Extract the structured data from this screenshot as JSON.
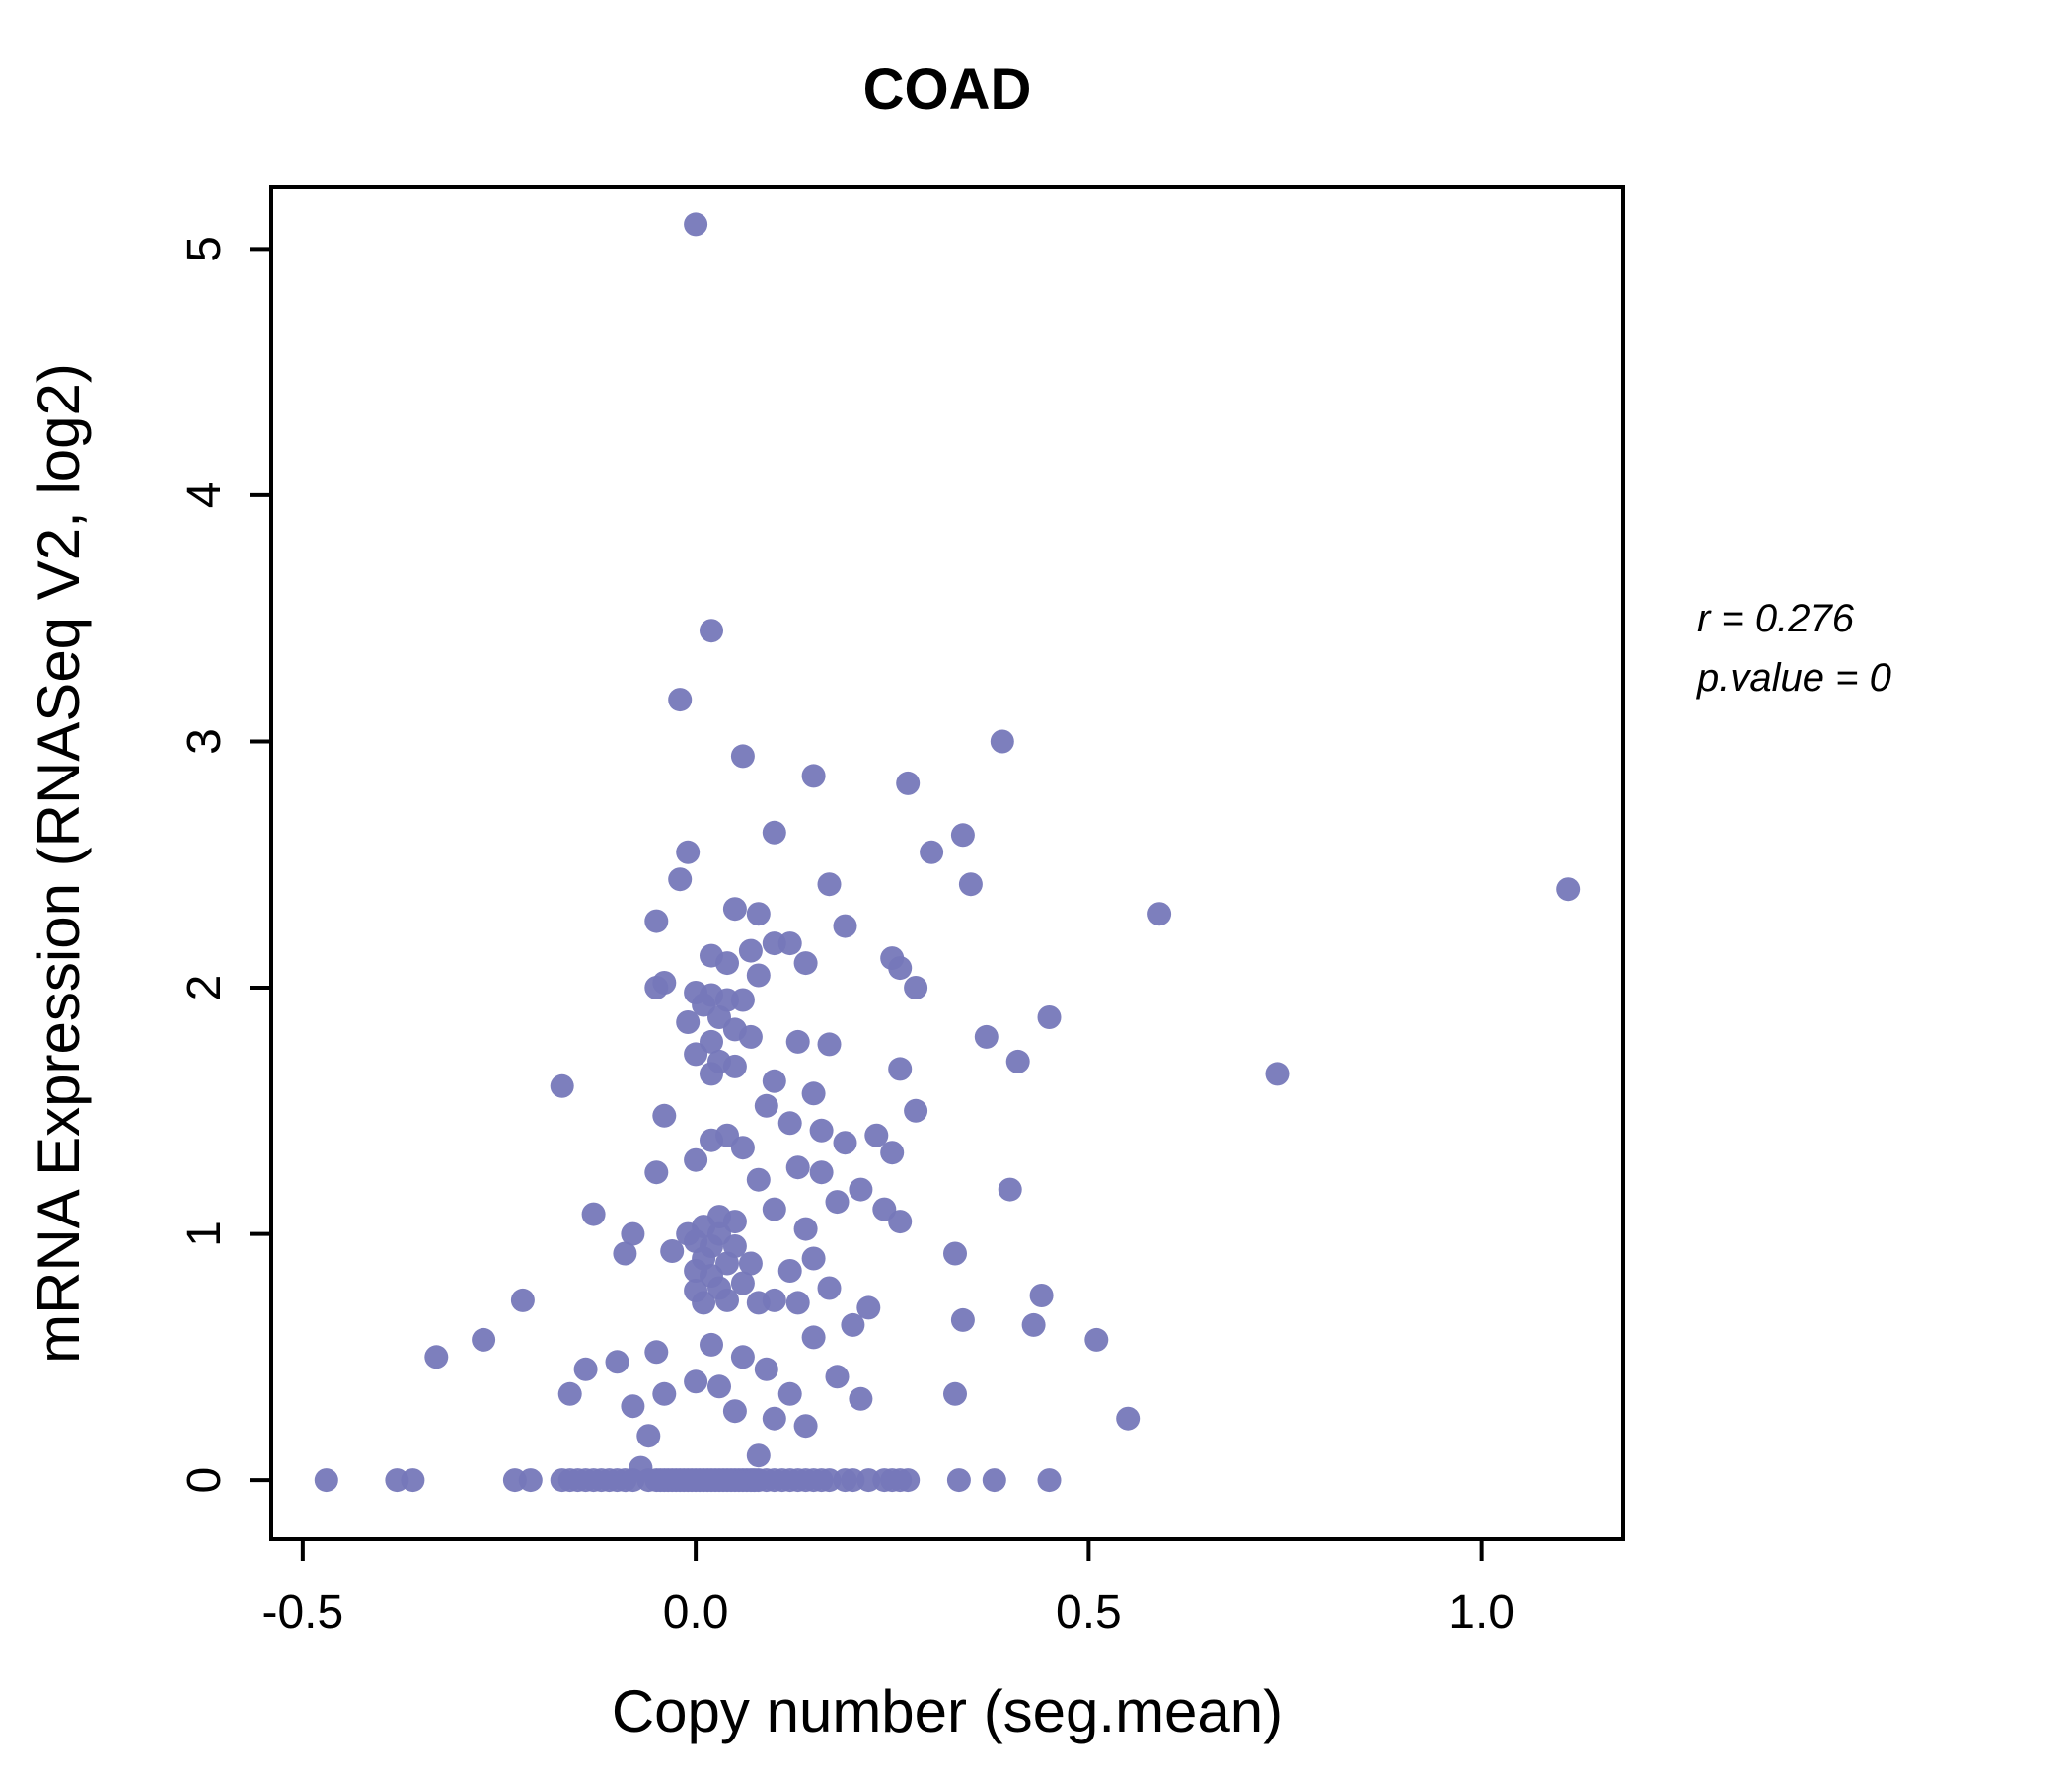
{
  "title": "COAD",
  "annotation": {
    "r_line": "r = 0.276",
    "p_line": "p.value = 0"
  },
  "colors": {
    "points": "#7678b9",
    "title": "#6c6cb4",
    "axis": "#000000"
  },
  "chart_data": {
    "type": "scatter",
    "title": "COAD",
    "xlabel": "Copy number (seg.mean)",
    "ylabel": "mRNA Expression (RNASeq V2, log2)",
    "xlim": [
      -0.54,
      1.18
    ],
    "ylim": [
      -0.24,
      5.25
    ],
    "xticks": [
      -0.5,
      0.0,
      0.5,
      1.0
    ],
    "yticks": [
      0,
      1,
      2,
      3,
      4,
      5
    ],
    "grid": false,
    "legend": "none",
    "annotations": [
      "r = 0.276",
      "p.value = 0"
    ],
    "points": [
      [
        0.0,
        5.1
      ],
      [
        0.02,
        3.45
      ],
      [
        -0.02,
        3.17
      ],
      [
        0.39,
        3.0
      ],
      [
        0.06,
        2.94
      ],
      [
        0.15,
        2.86
      ],
      [
        0.27,
        2.83
      ],
      [
        0.1,
        2.63
      ],
      [
        0.34,
        2.62
      ],
      [
        0.3,
        2.55
      ],
      [
        -0.01,
        2.55
      ],
      [
        0.17,
        2.42
      ],
      [
        0.35,
        2.42
      ],
      [
        -0.02,
        2.44
      ],
      [
        1.11,
        2.4
      ],
      [
        0.59,
        2.3
      ],
      [
        0.05,
        2.32
      ],
      [
        0.08,
        2.3
      ],
      [
        -0.05,
        2.27
      ],
      [
        0.19,
        2.25
      ],
      [
        0.25,
        2.12
      ],
      [
        0.26,
        2.08
      ],
      [
        0.1,
        2.18
      ],
      [
        0.12,
        2.18
      ],
      [
        0.07,
        2.15
      ],
      [
        0.02,
        2.13
      ],
      [
        0.04,
        2.1
      ],
      [
        0.14,
        2.1
      ],
      [
        0.08,
        2.05
      ],
      [
        -0.04,
        2.02
      ],
      [
        -0.05,
        2.0
      ],
      [
        0.0,
        1.98
      ],
      [
        0.02,
        1.97
      ],
      [
        0.04,
        1.95
      ],
      [
        0.06,
        1.95
      ],
      [
        0.01,
        1.93
      ],
      [
        0.28,
        2.0
      ],
      [
        0.45,
        1.88
      ],
      [
        0.37,
        1.8
      ],
      [
        0.03,
        1.88
      ],
      [
        -0.01,
        1.86
      ],
      [
        0.05,
        1.83
      ],
      [
        0.07,
        1.8
      ],
      [
        0.02,
        1.78
      ],
      [
        0.13,
        1.78
      ],
      [
        0.17,
        1.77
      ],
      [
        0.0,
        1.73
      ],
      [
        0.03,
        1.7
      ],
      [
        0.05,
        1.68
      ],
      [
        0.02,
        1.65
      ],
      [
        0.26,
        1.67
      ],
      [
        0.41,
        1.7
      ],
      [
        0.74,
        1.65
      ],
      [
        0.1,
        1.62
      ],
      [
        -0.17,
        1.6
      ],
      [
        0.15,
        1.57
      ],
      [
        0.09,
        1.52
      ],
      [
        -0.04,
        1.48
      ],
      [
        0.28,
        1.5
      ],
      [
        0.12,
        1.45
      ],
      [
        0.16,
        1.42
      ],
      [
        0.04,
        1.4
      ],
      [
        0.02,
        1.38
      ],
      [
        0.06,
        1.35
      ],
      [
        0.19,
        1.37
      ],
      [
        0.23,
        1.4
      ],
      [
        0.25,
        1.33
      ],
      [
        0.0,
        1.3
      ],
      [
        0.13,
        1.27
      ],
      [
        0.16,
        1.25
      ],
      [
        -0.05,
        1.25
      ],
      [
        0.08,
        1.22
      ],
      [
        0.4,
        1.18
      ],
      [
        0.21,
        1.18
      ],
      [
        0.18,
        1.13
      ],
      [
        0.24,
        1.1
      ],
      [
        0.1,
        1.1
      ],
      [
        0.03,
        1.07
      ],
      [
        -0.13,
        1.08
      ],
      [
        0.05,
        1.05
      ],
      [
        0.01,
        1.03
      ],
      [
        -0.01,
        1.0
      ],
      [
        0.03,
        1.0
      ],
      [
        0.26,
        1.05
      ],
      [
        0.14,
        1.02
      ],
      [
        -0.08,
        1.0
      ],
      [
        0.0,
        0.97
      ],
      [
        0.02,
        0.95
      ],
      [
        0.05,
        0.95
      ],
      [
        -0.03,
        0.93
      ],
      [
        -0.09,
        0.92
      ],
      [
        0.01,
        0.9
      ],
      [
        0.04,
        0.88
      ],
      [
        0.07,
        0.88
      ],
      [
        0.15,
        0.9
      ],
      [
        0.33,
        0.92
      ],
      [
        0.0,
        0.85
      ],
      [
        0.02,
        0.83
      ],
      [
        0.12,
        0.85
      ],
      [
        0.06,
        0.8
      ],
      [
        0.03,
        0.78
      ],
      [
        0.0,
        0.77
      ],
      [
        0.17,
        0.78
      ],
      [
        0.04,
        0.73
      ],
      [
        0.08,
        0.72
      ],
      [
        0.01,
        0.72
      ],
      [
        0.1,
        0.73
      ],
      [
        0.13,
        0.72
      ],
      [
        -0.22,
        0.73
      ],
      [
        0.22,
        0.7
      ],
      [
        0.34,
        0.65
      ],
      [
        0.44,
        0.75
      ],
      [
        0.2,
        0.63
      ],
      [
        0.15,
        0.58
      ],
      [
        0.43,
        0.63
      ],
      [
        0.51,
        0.57
      ],
      [
        -0.27,
        0.57
      ],
      [
        0.02,
        0.55
      ],
      [
        -0.05,
        0.52
      ],
      [
        0.06,
        0.5
      ],
      [
        -0.1,
        0.48
      ],
      [
        -0.33,
        0.5
      ],
      [
        0.09,
        0.45
      ],
      [
        -0.14,
        0.45
      ],
      [
        0.18,
        0.42
      ],
      [
        0.0,
        0.4
      ],
      [
        0.03,
        0.38
      ],
      [
        -0.16,
        0.35
      ],
      [
        -0.04,
        0.35
      ],
      [
        0.33,
        0.35
      ],
      [
        0.21,
        0.33
      ],
      [
        0.12,
        0.35
      ],
      [
        -0.08,
        0.3
      ],
      [
        0.05,
        0.28
      ],
      [
        0.1,
        0.25
      ],
      [
        0.55,
        0.25
      ],
      [
        0.14,
        0.22
      ],
      [
        -0.06,
        0.18
      ],
      [
        0.08,
        0.1
      ],
      [
        -0.07,
        0.05
      ],
      [
        -0.47,
        0
      ],
      [
        -0.38,
        0
      ],
      [
        -0.36,
        0
      ],
      [
        -0.23,
        0
      ],
      [
        -0.21,
        0
      ],
      [
        -0.17,
        0
      ],
      [
        -0.16,
        0
      ],
      [
        -0.15,
        0
      ],
      [
        -0.14,
        0
      ],
      [
        -0.13,
        0
      ],
      [
        -0.12,
        0
      ],
      [
        -0.11,
        0
      ],
      [
        -0.1,
        0
      ],
      [
        -0.09,
        0
      ],
      [
        -0.08,
        0
      ],
      [
        -0.06,
        0
      ],
      [
        -0.05,
        0
      ],
      [
        -0.045,
        0
      ],
      [
        -0.04,
        0
      ],
      [
        -0.035,
        0
      ],
      [
        -0.03,
        0
      ],
      [
        -0.025,
        0
      ],
      [
        -0.02,
        0
      ],
      [
        -0.015,
        0
      ],
      [
        -0.01,
        0
      ],
      [
        -0.005,
        0
      ],
      [
        0.0,
        0
      ],
      [
        0.005,
        0
      ],
      [
        0.01,
        0
      ],
      [
        0.015,
        0
      ],
      [
        0.02,
        0
      ],
      [
        0.025,
        0
      ],
      [
        0.03,
        0
      ],
      [
        0.035,
        0
      ],
      [
        0.04,
        0
      ],
      [
        0.045,
        0
      ],
      [
        0.05,
        0
      ],
      [
        0.055,
        0
      ],
      [
        0.06,
        0
      ],
      [
        0.065,
        0
      ],
      [
        0.07,
        0
      ],
      [
        0.075,
        0
      ],
      [
        0.08,
        0
      ],
      [
        0.09,
        0
      ],
      [
        0.1,
        0
      ],
      [
        0.11,
        0
      ],
      [
        0.12,
        0
      ],
      [
        0.13,
        0
      ],
      [
        0.14,
        0
      ],
      [
        0.15,
        0
      ],
      [
        0.16,
        0
      ],
      [
        0.17,
        0
      ],
      [
        0.19,
        0
      ],
      [
        0.2,
        0
      ],
      [
        0.22,
        0
      ],
      [
        0.24,
        0
      ],
      [
        0.25,
        0
      ],
      [
        0.26,
        0
      ],
      [
        0.27,
        0
      ],
      [
        0.335,
        0
      ],
      [
        0.38,
        0
      ],
      [
        0.45,
        0
      ]
    ]
  }
}
